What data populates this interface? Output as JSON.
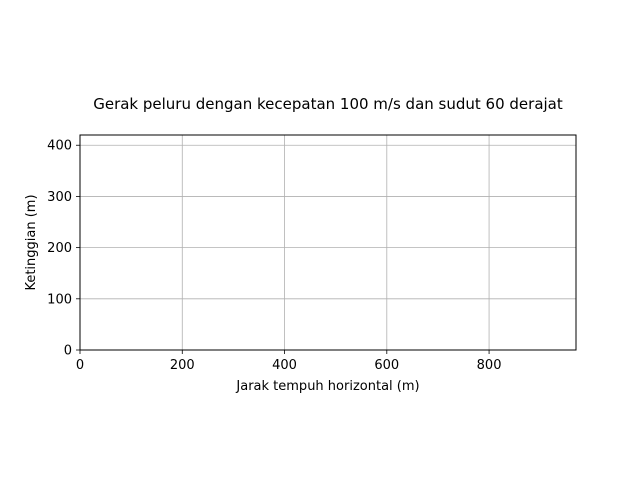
{
  "chart_data": {
    "type": "line",
    "title": "Gerak peluru dengan kecepatan 100 m/s dan sudut 60 derajat",
    "xlabel": "Jarak tempuh horizontal (m)",
    "ylabel": "Ketinggian (m)",
    "xlim": [
      0,
      970
    ],
    "ylim": [
      0,
      420
    ],
    "xticks": [
      0,
      200,
      400,
      600,
      800
    ],
    "yticks": [
      0,
      100,
      200,
      300,
      400
    ],
    "grid": true,
    "series": []
  }
}
